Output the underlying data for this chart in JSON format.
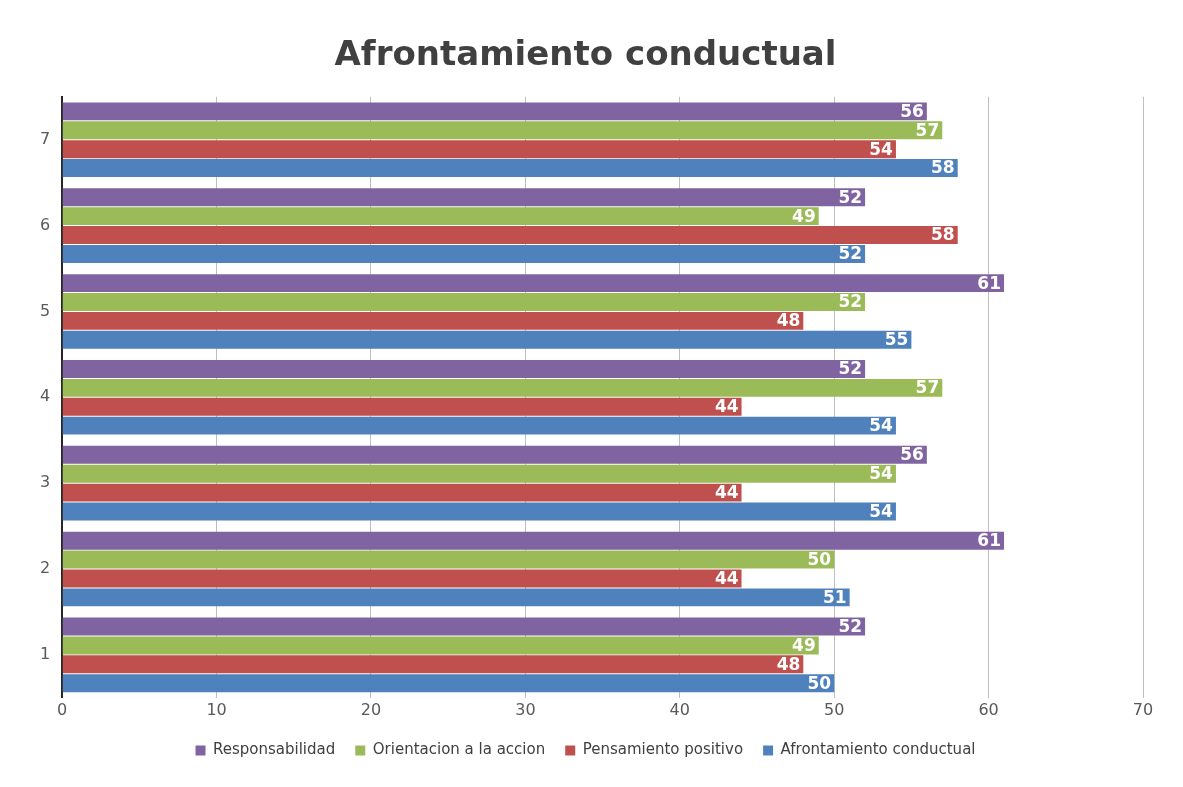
{
  "chart_data": {
    "type": "bar",
    "orientation": "horizontal",
    "title": "Afrontamiento conductual",
    "categories": [
      "7",
      "6",
      "5",
      "4",
      "3",
      "2",
      "1"
    ],
    "series": [
      {
        "name": "Responsabilidad",
        "color": "#8064a2",
        "values": [
          56,
          52,
          61,
          52,
          56,
          61,
          52
        ]
      },
      {
        "name": "Orientacion a la accion",
        "color": "#9bbb59",
        "values": [
          57,
          49,
          52,
          57,
          54,
          50,
          49
        ]
      },
      {
        "name": "Pensamiento positivo",
        "color": "#c0504d",
        "values": [
          54,
          58,
          48,
          44,
          44,
          44,
          48
        ]
      },
      {
        "name": "Afrontamiento conductual",
        "color": "#4f81bd",
        "values": [
          58,
          52,
          55,
          54,
          54,
          51,
          50
        ]
      }
    ],
    "xlim": [
      0,
      70
    ],
    "xticks": [
      0,
      10,
      20,
      30,
      40,
      50,
      60,
      70
    ],
    "grid": "x",
    "legend": "bottom",
    "data_labels": true
  }
}
